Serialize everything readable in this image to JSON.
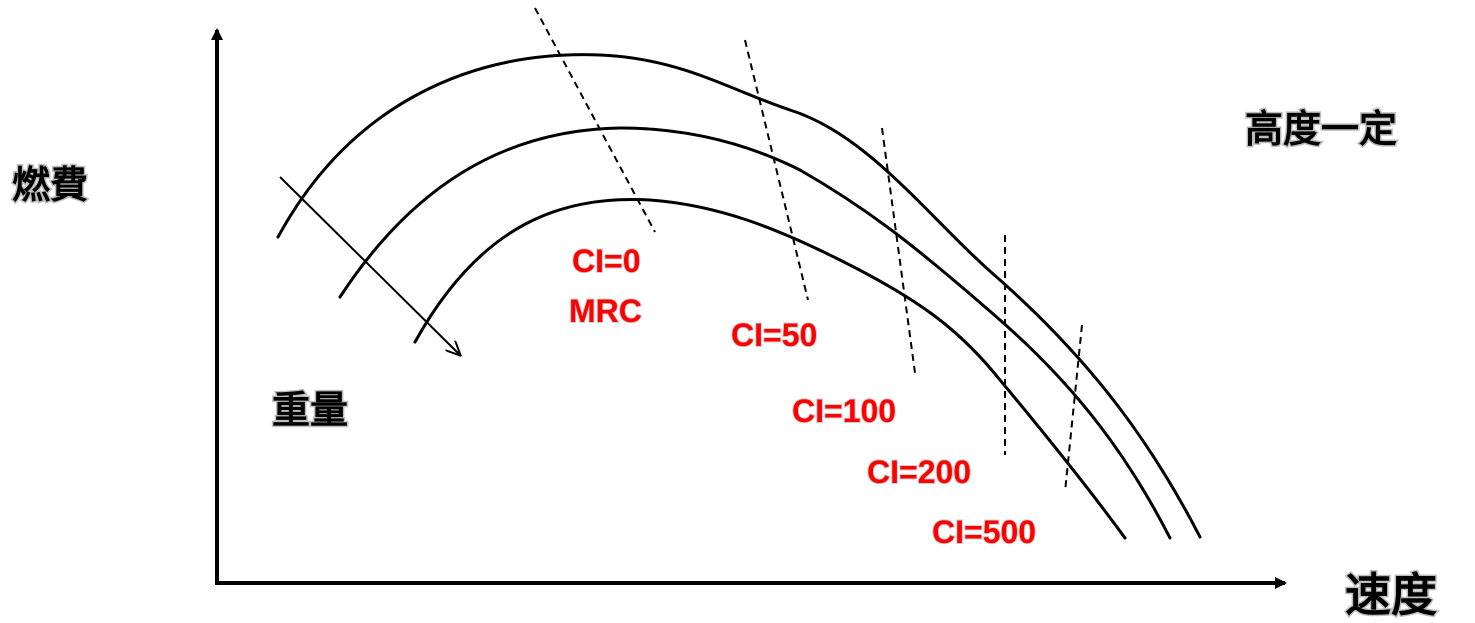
{
  "labels": {
    "y_axis": "燃費",
    "x_axis": "速度",
    "condition": "高度一定",
    "weight": "重量"
  },
  "ci_labels": {
    "ci0": "CI=0",
    "mrc": "MRC",
    "ci50": "CI=50",
    "ci100": "CI=100",
    "ci200": "CI=200",
    "ci500": "CI=500"
  },
  "colors": {
    "axis": "#000000",
    "curves": "#000000",
    "ci_text": "#ff0000"
  }
}
